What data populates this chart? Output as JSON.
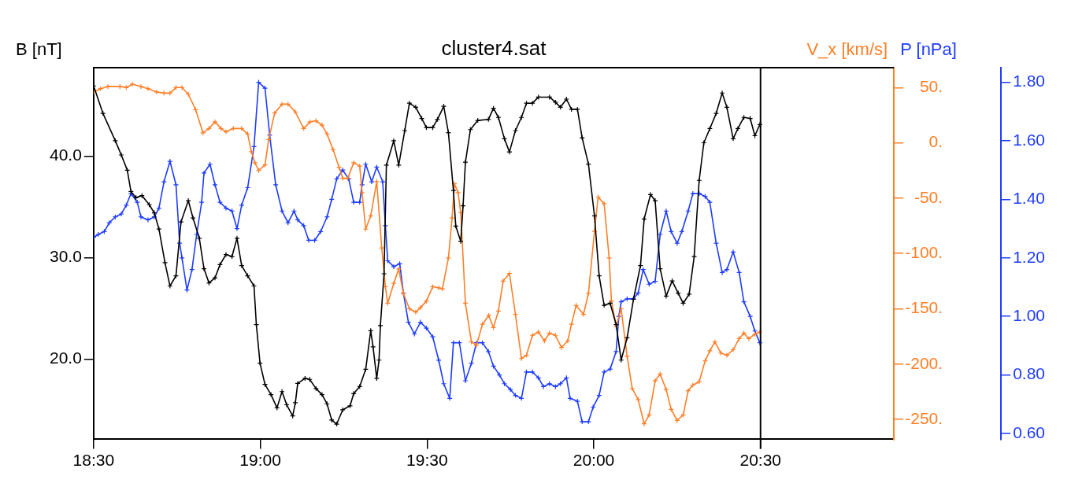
{
  "chart_data": {
    "type": "line",
    "title": "cluster4.sat",
    "ylabel": "B [nT]",
    "y2label": "V_x [km/s]",
    "y3label": "P [nPa]",
    "marker": "cross",
    "xlim": [
      18.5,
      20.9
    ],
    "xticks": [
      {
        "value": 18.5,
        "label": "18:30"
      },
      {
        "value": 19,
        "label": "19:00"
      },
      {
        "value": 19.5,
        "label": "19:30"
      },
      {
        "value": 20,
        "label": "20:00"
      },
      {
        "value": 20.5,
        "label": "20:30"
      }
    ],
    "ylim": [
      12.1,
      48.7
    ],
    "yticks": [
      {
        "value": 20,
        "label": "20.0"
      },
      {
        "value": 30,
        "label": "30.0"
      },
      {
        "value": 40,
        "label": "40.0"
      }
    ],
    "y2lim": [
      -268,
      68
    ],
    "y2ticks": [
      {
        "value": -250,
        "label": "-250."
      },
      {
        "value": -200,
        "label": "-200."
      },
      {
        "value": -150,
        "label": "-150."
      },
      {
        "value": -100,
        "label": "-100."
      },
      {
        "value": -50,
        "label": "-50."
      },
      {
        "value": 0,
        "label": "0."
      },
      {
        "value": 50,
        "label": "50."
      }
    ],
    "y3lim": [
      0.58,
      1.85
    ],
    "y3ticks": [
      {
        "value": 0.6,
        "label": "0.60"
      },
      {
        "value": 0.8,
        "label": "0.80"
      },
      {
        "value": 1,
        "label": "1.00"
      },
      {
        "value": 1.2,
        "label": "1.20"
      },
      {
        "value": 1.4,
        "label": "1.40"
      },
      {
        "value": 1.6,
        "label": "1.60"
      },
      {
        "value": 1.8,
        "label": "1.80"
      }
    ],
    "ref_lines": [
      {
        "axis": "x",
        "value": 20.5,
        "color": "#000000"
      }
    ],
    "series": [
      {
        "color": "#000000",
        "x": [
          18.5,
          18.528,
          18.565,
          18.583,
          18.601,
          18.612,
          18.627,
          18.645,
          18.667,
          18.682,
          18.696,
          18.714,
          18.729,
          18.747,
          18.762,
          18.784,
          18.798,
          18.817,
          18.831,
          18.846,
          18.864,
          18.879,
          18.897,
          18.915,
          18.93,
          18.944,
          18.962,
          18.981,
          18.988,
          18.999,
          19.014,
          19.032,
          19.05,
          19.065,
          19.079,
          19.097,
          19.105,
          19.112,
          19.134,
          19.148,
          19.167,
          19.185,
          19.2,
          19.214,
          19.229,
          19.247,
          19.269,
          19.28,
          19.298,
          19.316,
          19.331,
          19.338,
          19.349,
          19.356,
          19.36,
          19.371,
          19.378,
          19.4,
          19.415,
          19.433,
          19.447,
          19.466,
          19.484,
          19.498,
          19.517,
          19.531,
          19.55,
          19.564,
          19.579,
          19.586,
          19.601,
          19.608,
          19.615,
          19.63,
          19.652,
          19.684,
          19.699,
          19.714,
          19.732,
          19.747,
          19.765,
          19.783,
          19.798,
          19.816,
          19.834,
          19.867,
          19.885,
          19.9,
          19.918,
          19.933,
          19.951,
          19.965,
          19.984,
          20.002,
          20.016,
          20.031,
          20.049,
          20.067,
          20.082,
          20.1,
          20.119,
          20.14,
          20.151,
          20.17,
          20.184,
          20.199,
          20.217,
          20.235,
          20.253,
          20.268,
          20.286,
          20.301,
          20.316,
          20.33,
          20.348,
          20.367,
          20.385,
          20.399,
          20.418,
          20.432,
          20.45,
          20.469,
          20.483,
          20.498
        ],
        "values": [
          46.9,
          44.2,
          41.5,
          40.1,
          38.6,
          36.5,
          35.9,
          36.1,
          35.2,
          34.4,
          32.8,
          29.5,
          27.2,
          28.2,
          33.5,
          35.6,
          33.9,
          31.9,
          28.9,
          27.5,
          28.0,
          29.3,
          30.3,
          30.1,
          31.9,
          29.2,
          28.2,
          27.2,
          23.4,
          19.6,
          17.5,
          16.5,
          15.2,
          16.8,
          15.5,
          14.4,
          15.7,
          17.6,
          18.1,
          18.0,
          17.1,
          16.5,
          15.6,
          14.0,
          13.6,
          15.0,
          15.4,
          16.6,
          17.3,
          19.0,
          22.8,
          21.2,
          18.1,
          19.9,
          23.3,
          28.4,
          39.1,
          41.5,
          39.1,
          42.5,
          45.2,
          44.8,
          43.7,
          42.8,
          42.8,
          43.6,
          44.9,
          42.3,
          36.6,
          33.1,
          31.6,
          35.1,
          39.4,
          42.6,
          43.5,
          43.6,
          44.7,
          43.8,
          41.7,
          40.4,
          42.5,
          43.8,
          45.2,
          45.2,
          45.8,
          45.8,
          45.3,
          44.8,
          45.6,
          44.6,
          44.6,
          41.8,
          39.2,
          34.1,
          28.2,
          25.3,
          25.5,
          23.4,
          19.9,
          22.1,
          25.9,
          29.2,
          33.8,
          36.2,
          35.6,
          28.9,
          26.2,
          27.7,
          26.5,
          25.5,
          26.4,
          30.1,
          37.6,
          41.3,
          42.7,
          44.2,
          46.2,
          44.8,
          41.7,
          42.7,
          43.8,
          43.7,
          42.0,
          43.1
        ]
      },
      {
        "color": "#ff7f27",
        "axis": "y2",
        "x": [
          18.5,
          18.521,
          18.543,
          18.579,
          18.598,
          18.616,
          18.642,
          18.663,
          18.689,
          18.711,
          18.729,
          18.747,
          18.765,
          18.784,
          18.806,
          18.828,
          18.846,
          18.864,
          18.882,
          18.897,
          18.919,
          18.944,
          18.962,
          18.973,
          18.984,
          18.995,
          19.014,
          19.025,
          19.043,
          19.065,
          19.083,
          19.105,
          19.13,
          19.149,
          19.167,
          19.185,
          19.2,
          19.218,
          19.236,
          19.247,
          19.262,
          19.28,
          19.298,
          19.305,
          19.316,
          19.331,
          19.349,
          19.364,
          19.375,
          19.382,
          19.4,
          19.415,
          19.429,
          19.447,
          19.466,
          19.48,
          19.498,
          19.517,
          19.535,
          19.546,
          19.564,
          19.575,
          19.582,
          19.593,
          19.601,
          19.615,
          19.633,
          19.648,
          19.666,
          19.685,
          19.699,
          19.714,
          19.728,
          19.747,
          19.765,
          19.783,
          19.798,
          19.816,
          19.834,
          19.852,
          19.867,
          19.885,
          19.903,
          19.922,
          19.933,
          19.947,
          19.969,
          19.984,
          20.002,
          20.013,
          20.031,
          20.046,
          20.053,
          20.067,
          20.082,
          20.1,
          20.115,
          20.133,
          20.151,
          20.166,
          20.184,
          20.199,
          20.217,
          20.232,
          20.25,
          20.268,
          20.283,
          20.297,
          20.316,
          20.334,
          20.348,
          20.363,
          20.381,
          20.399,
          20.418,
          20.436,
          20.45,
          20.465,
          20.483,
          20.498
        ],
        "values": [
          46,
          49,
          51,
          51,
          50,
          53,
          51,
          49,
          46,
          45,
          45,
          50,
          50,
          44,
          30,
          9,
          13,
          19,
          13,
          10,
          13,
          13,
          8,
          -8,
          -18,
          -25,
          -20,
          3,
          27,
          35,
          35,
          28,
          13,
          19,
          20,
          16,
          8,
          -6,
          -22,
          -32,
          -32,
          -18,
          -21,
          -45,
          -78,
          -66,
          -35,
          -95,
          -130,
          -145,
          -127,
          -114,
          -136,
          -150,
          -153,
          -149,
          -143,
          -130,
          -131,
          -132,
          -104,
          -68,
          -37,
          -45,
          -63,
          -145,
          -180,
          -183,
          -164,
          -156,
          -167,
          -152,
          -125,
          -118,
          -155,
          -195,
          -192,
          -174,
          -171,
          -179,
          -172,
          -174,
          -185,
          -179,
          -164,
          -147,
          -155,
          -136,
          -80,
          -49,
          -55,
          -104,
          -143,
          -166,
          -150,
          -193,
          -222,
          -232,
          -254,
          -246,
          -215,
          -209,
          -223,
          -241,
          -251,
          -246,
          -224,
          -219,
          -216,
          -197,
          -188,
          -180,
          -190,
          -192,
          -187,
          -177,
          -172,
          -177,
          -173,
          -171
        ]
      },
      {
        "color": "#1e3cff",
        "axis": "y3",
        "x": [
          18.5,
          18.514,
          18.532,
          18.547,
          18.565,
          18.583,
          18.598,
          18.612,
          18.631,
          18.642,
          18.663,
          18.682,
          18.696,
          18.711,
          18.729,
          18.747,
          18.758,
          18.765,
          18.78,
          18.795,
          18.809,
          18.824,
          18.831,
          18.849,
          18.864,
          18.879,
          18.897,
          18.915,
          18.93,
          18.944,
          18.962,
          18.981,
          18.995,
          19.014,
          19.028,
          19.046,
          19.065,
          19.083,
          19.101,
          19.112,
          19.13,
          19.145,
          19.163,
          19.181,
          19.2,
          19.214,
          19.229,
          19.247,
          19.265,
          19.28,
          19.298,
          19.305,
          19.316,
          19.334,
          19.349,
          19.367,
          19.375,
          19.382,
          19.4,
          19.418,
          19.429,
          19.444,
          19.462,
          19.48,
          19.498,
          19.517,
          19.535,
          19.55,
          19.568,
          19.579,
          19.597,
          19.615,
          19.633,
          19.648,
          19.666,
          19.684,
          19.699,
          19.717,
          19.732,
          19.75,
          19.765,
          19.783,
          19.798,
          19.816,
          19.834,
          19.849,
          19.867,
          19.885,
          19.9,
          19.918,
          19.929,
          19.951,
          19.965,
          19.984,
          19.998,
          20.016,
          20.031,
          20.049,
          20.067,
          20.075,
          20.082,
          20.1,
          20.119,
          20.133,
          20.148,
          20.166,
          20.184,
          20.199,
          20.217,
          20.232,
          20.25,
          20.264,
          20.283,
          20.297,
          20.316,
          20.334,
          20.348,
          20.367,
          20.385,
          20.399,
          20.418,
          20.436,
          20.45,
          20.469,
          20.483,
          20.498
        ],
        "values": [
          1.27,
          1.28,
          1.29,
          1.32,
          1.34,
          1.35,
          1.38,
          1.42,
          1.39,
          1.34,
          1.33,
          1.34,
          1.37,
          1.46,
          1.53,
          1.45,
          1.25,
          1.2,
          1.09,
          1.16,
          1.28,
          1.39,
          1.49,
          1.52,
          1.45,
          1.39,
          1.37,
          1.36,
          1.3,
          1.38,
          1.44,
          1.58,
          1.8,
          1.78,
          1.62,
          1.45,
          1.36,
          1.32,
          1.36,
          1.33,
          1.31,
          1.26,
          1.26,
          1.29,
          1.34,
          1.4,
          1.47,
          1.5,
          1.47,
          1.39,
          1.39,
          1.45,
          1.52,
          1.46,
          1.51,
          1.46,
          1.31,
          1.19,
          1.17,
          1.18,
          1.08,
          0.98,
          0.94,
          0.98,
          0.96,
          0.93,
          0.85,
          0.77,
          0.72,
          0.91,
          0.91,
          0.78,
          0.84,
          0.91,
          0.91,
          0.88,
          0.83,
          0.8,
          0.77,
          0.75,
          0.73,
          0.72,
          0.81,
          0.81,
          0.79,
          0.76,
          0.77,
          0.76,
          0.77,
          0.79,
          0.72,
          0.71,
          0.64,
          0.64,
          0.69,
          0.73,
          0.81,
          0.82,
          0.88,
          1.0,
          1.05,
          1.06,
          1.06,
          1.08,
          1.16,
          1.11,
          1.12,
          1.28,
          1.36,
          1.29,
          1.25,
          1.29,
          1.36,
          1.42,
          1.42,
          1.41,
          1.39,
          1.25,
          1.15,
          1.16,
          1.22,
          1.15,
          1.05,
          1.0,
          0.95,
          0.91
        ]
      }
    ]
  }
}
